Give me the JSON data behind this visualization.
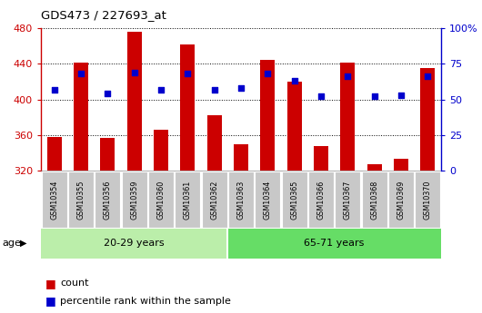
{
  "title": "GDS473 / 227693_at",
  "samples": [
    "GSM10354",
    "GSM10355",
    "GSM10356",
    "GSM10359",
    "GSM10360",
    "GSM10361",
    "GSM10362",
    "GSM10363",
    "GSM10364",
    "GSM10365",
    "GSM10366",
    "GSM10367",
    "GSM10368",
    "GSM10369",
    "GSM10370"
  ],
  "counts": [
    358,
    441,
    357,
    476,
    366,
    462,
    382,
    350,
    444,
    420,
    348,
    441,
    327,
    333,
    435
  ],
  "percentiles": [
    57,
    68,
    54,
    69,
    57,
    68,
    57,
    58,
    68,
    63,
    52,
    66,
    52,
    53,
    66
  ],
  "ylim_left": [
    320,
    480
  ],
  "ylim_right": [
    0,
    100
  ],
  "yticks_left": [
    320,
    360,
    400,
    440,
    480
  ],
  "yticks_right": [
    0,
    25,
    50,
    75,
    100
  ],
  "bar_color": "#cc0000",
  "dot_color": "#0000cc",
  "bar_bottom": 320,
  "group1_label": "20-29 years",
  "group2_label": "65-71 years",
  "group1_count": 7,
  "group2_count": 8,
  "age_label": "age",
  "legend_count": "count",
  "legend_percentile": "percentile rank within the sample",
  "group_bg_color1": "#bbeeaa",
  "group_bg_color2": "#66dd66",
  "title_color": "#000000",
  "left_axis_color": "#cc0000",
  "right_axis_color": "#0000cc",
  "grid_color": "#000000",
  "tick_bg_color": "#c8c8c8"
}
